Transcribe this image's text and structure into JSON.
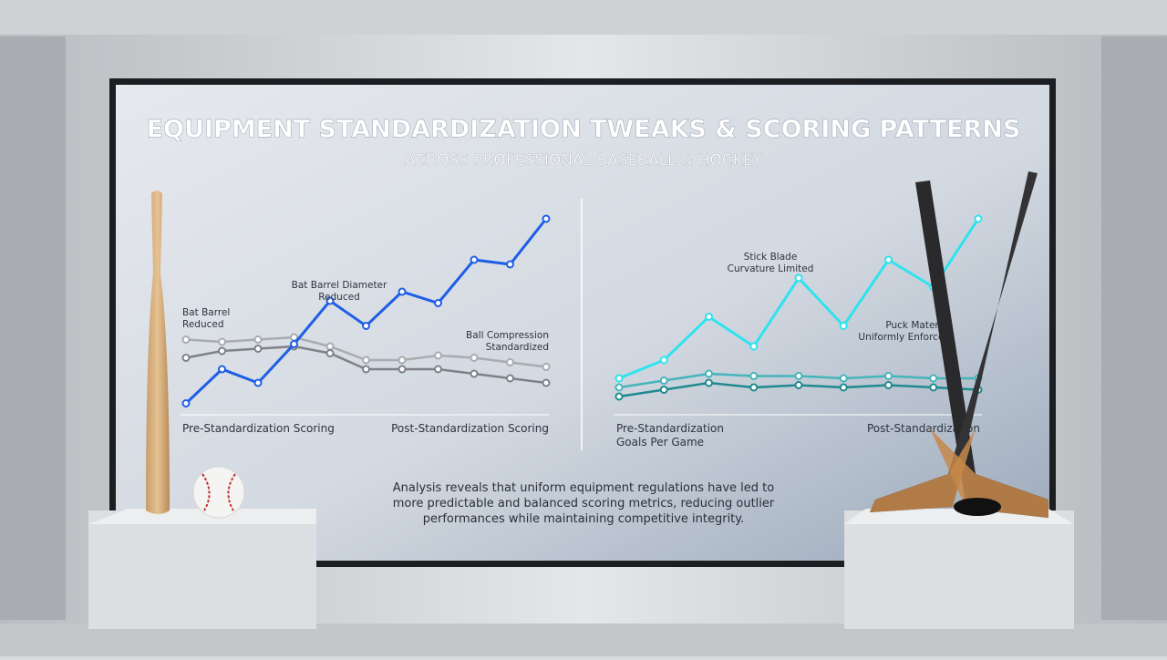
{
  "title": "EQUIPMENT STANDARDIZATION TWEAKS & SCORING PATTERNS",
  "subtitle": "ACROSS PROFESSIONAL BASEBALL & HOCKEY",
  "chart_data": [
    {
      "type": "line",
      "x": [
        0,
        1,
        2,
        3,
        4,
        5,
        6,
        7,
        8,
        9,
        10
      ],
      "series": [
        {
          "color": "#a8abb0",
          "values": [
            35,
            34,
            35,
            36,
            32,
            26,
            26,
            28,
            27,
            25,
            23
          ]
        },
        {
          "color": "#7e8188",
          "values": [
            27,
            30,
            31,
            32,
            29,
            22,
            22,
            22,
            20,
            18,
            16
          ]
        },
        {
          "color": "#1f5ee6",
          "values": [
            7,
            22,
            16,
            33,
            52,
            41,
            56,
            51,
            70,
            68,
            88
          ]
        }
      ],
      "annotations": [
        [
          "Bat Barrel",
          "Reduced"
        ],
        [
          "Bat Barrel Diameter",
          "Reduced"
        ],
        [
          "Ball Compression",
          "Standardized"
        ]
      ],
      "x_labels": [
        [
          "Pre-Standardization Scoring"
        ],
        [
          "Post-Standardization Scoring"
        ]
      ]
    },
    {
      "type": "line",
      "x": [
        0,
        1,
        2,
        3,
        4,
        5,
        6,
        7,
        8
      ],
      "series": [
        {
          "color": "#45b4bb",
          "values": [
            14,
            17,
            20,
            19,
            19,
            18,
            19,
            18,
            18
          ]
        },
        {
          "color": "#1f8a90",
          "values": [
            10,
            13,
            16,
            14,
            15,
            14,
            15,
            14,
            13
          ]
        },
        {
          "color": "#2fe3ee",
          "values": [
            18,
            26,
            45,
            32,
            62,
            41,
            70,
            58,
            88
          ]
        }
      ],
      "annotations": [
        [
          "Stick Blade",
          "Curvature Limited"
        ],
        [
          "Puck Material",
          "Uniformly Enforced"
        ]
      ],
      "x_labels": [
        [
          "Pre-Standardization",
          "Goals Per Game"
        ],
        [
          "Post-Standardization"
        ]
      ]
    }
  ],
  "caption": [
    "Analysis reveals that uniform equipment regulations have led to",
    "more predictable and balanced scoring metrics, reducing outlier",
    "performances while maintaining competitive integrity."
  ]
}
